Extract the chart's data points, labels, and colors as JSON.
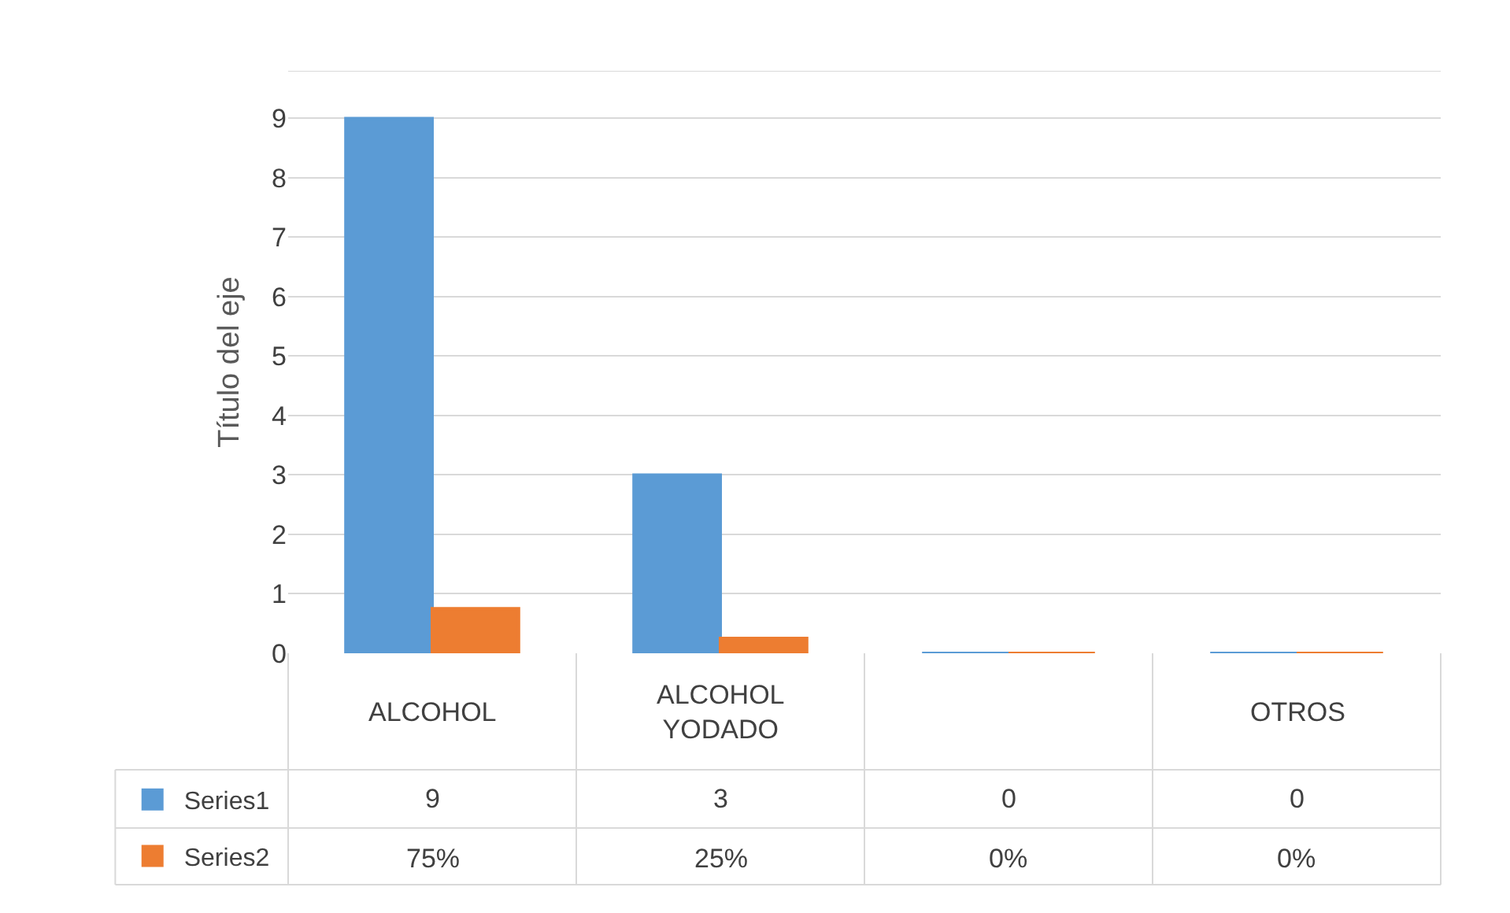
{
  "chart_data": {
    "type": "bar",
    "ylabel": "Título del eje",
    "categories": [
      "ALCOHOL",
      "ALCOHOL YODADO",
      null,
      "OTROS"
    ],
    "series": [
      {
        "name": "Series1",
        "color": "#5b9bd5",
        "values": [
          9,
          3,
          0,
          0
        ],
        "value_labels": [
          "9",
          "3",
          "0",
          "0"
        ]
      },
      {
        "name": "Series2",
        "color": "#ed7d31",
        "values": [
          0.75,
          0.25,
          0,
          0
        ],
        "value_labels": [
          "75%",
          "25%",
          "0%",
          "0%"
        ]
      }
    ],
    "ylim": [
      0,
      9.8
    ],
    "yticks": [
      0,
      1,
      2,
      3,
      4,
      5,
      6,
      7,
      8,
      9
    ],
    "grid": "y",
    "legend": "bottom left"
  }
}
